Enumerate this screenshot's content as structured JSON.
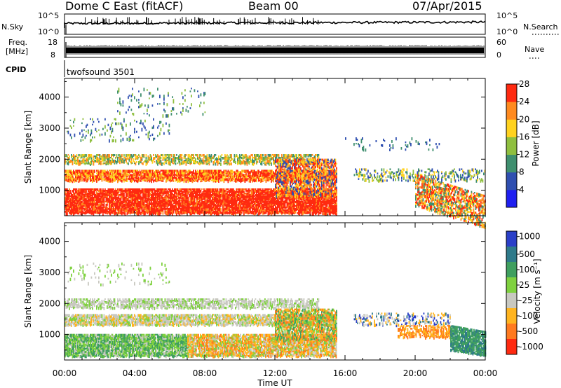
{
  "header": {
    "station": "Dome C East (fitACF)",
    "beam": "Beam 00",
    "date": "07/Apr/2015"
  },
  "sky_panel": {
    "label": "N.Sky",
    "left_ticks": [
      "10^5",
      "10^0"
    ],
    "right_ticks": [
      "10^5",
      "10^0"
    ],
    "right_label": "N.Search"
  },
  "freq_panel": {
    "label_line1": "Freq.",
    "label_line2": "[MHz]",
    "left_ticks": [
      "18",
      "8"
    ],
    "right_ticks": [
      "60",
      "0"
    ],
    "right_label": "Nave"
  },
  "cpid": {
    "label": "CPID",
    "value": "twofsound 3501"
  },
  "chart_data": [
    {
      "type": "heatmap",
      "name": "power",
      "ylabel": "Slant Range [km]",
      "xlabel": "Time UT",
      "xlim_hours": [
        0,
        24
      ],
      "ylim": [
        180,
        4600
      ],
      "x_tick_labels": [
        "00:00",
        "04:00",
        "08:00",
        "12:00",
        "16:00",
        "20:00",
        "00:00"
      ],
      "y_ticks": [
        1000,
        2000,
        3000,
        4000
      ],
      "colorbar": {
        "label": "Power [dB]",
        "tick_labels": [
          "4",
          "8",
          "12",
          "16",
          "20",
          "24",
          "28"
        ],
        "colors": [
          "#1f1ff0",
          "#2f4fb0",
          "#3f8f6f",
          "#8fbf3f",
          "#ffd21f",
          "#ff8a1f",
          "#ff2a10"
        ]
      }
    },
    {
      "type": "heatmap",
      "name": "velocity",
      "ylabel": "Slant Range [km]",
      "xlabel": "Time UT",
      "xlim_hours": [
        0,
        24
      ],
      "ylim": [
        180,
        4600
      ],
      "x_tick_labels": [
        "00:00",
        "04:00",
        "08:00",
        "12:00",
        "16:00",
        "20:00",
        "00:00"
      ],
      "y_ticks": [
        1000,
        2000,
        3000,
        4000
      ],
      "colorbar": {
        "label": "Velocity [m s⁻¹]",
        "tick_labels": [
          "1000",
          "500",
          "100",
          "25",
          "-25",
          "-100",
          "-500",
          "-1000"
        ],
        "colors": [
          "#2a3fc8",
          "#2e7a8a",
          "#3f9f5f",
          "#7fd13f",
          "#c8c8c0",
          "#ffb41f",
          "#ff7a1f",
          "#ff2a10"
        ]
      }
    }
  ]
}
